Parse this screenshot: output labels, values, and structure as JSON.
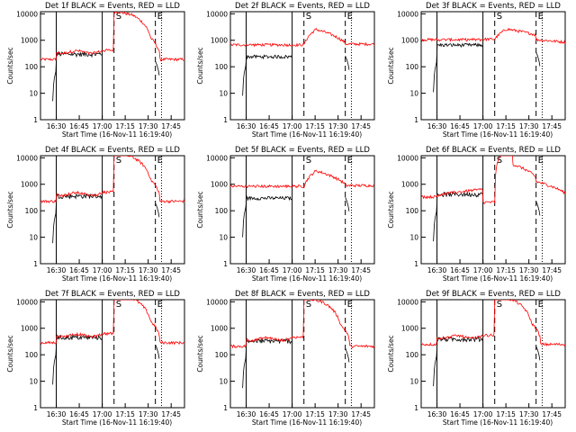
{
  "chart_data": {
    "type": "line",
    "panels": [
      {
        "title": "Det 1f BLACK = Events, RED = LLD",
        "detector": "1f",
        "shape": "A",
        "scale": 1.0
      },
      {
        "title": "Det 2f BLACK = Events, RED = LLD",
        "detector": "2f",
        "shape": "B",
        "scale": 1.6
      },
      {
        "title": "Det 3f BLACK = Events, RED = LLD",
        "detector": "3f",
        "shape": "C",
        "scale": 2.2
      },
      {
        "title": "Det 4f BLACK = Events, RED = LLD",
        "detector": "4f",
        "shape": "A",
        "scale": 1.2
      },
      {
        "title": "Det 5f BLACK = Events, RED = LLD",
        "detector": "5f",
        "shape": "B",
        "scale": 2.0
      },
      {
        "title": "Det 6f BLACK = Events, RED = LLD",
        "detector": "6f",
        "shape": "D",
        "scale": 1.4
      },
      {
        "title": "Det 7f BLACK = Events, RED = LLD",
        "detector": "7f",
        "shape": "A",
        "scale": 1.5
      },
      {
        "title": "Det 8f BLACK = Events, RED = LLD",
        "detector": "8f",
        "shape": "A",
        "scale": 1.1
      },
      {
        "title": "Det 9f BLACK = Events, RED = LLD",
        "detector": "9f",
        "shape": "A",
        "scale": 1.3
      }
    ],
    "ylabel": "Counts/sec",
    "xlabel": "Start Time (16-Nov-11 16:19:40)",
    "x_ticks": [
      "16:30",
      "16:45",
      "17:00",
      "17:15",
      "17:30",
      "17:45"
    ],
    "y_ticks": [
      "1",
      "10",
      "100",
      "1000",
      "10000"
    ],
    "y_scale": "log",
    "ylim": [
      1,
      12000
    ],
    "xlim_minutes": [
      0,
      94
    ],
    "vertical_markers": {
      "solid_minutes": [
        10.3,
        40.3
      ],
      "dashed_minutes": [
        48,
        75
      ],
      "dotted_minutes": [
        79
      ],
      "labels": [
        "S",
        "E"
      ]
    },
    "series": [
      {
        "name": "Events",
        "color": "#000000"
      },
      {
        "name": "LLD",
        "color": "#ff0000"
      }
    ]
  }
}
